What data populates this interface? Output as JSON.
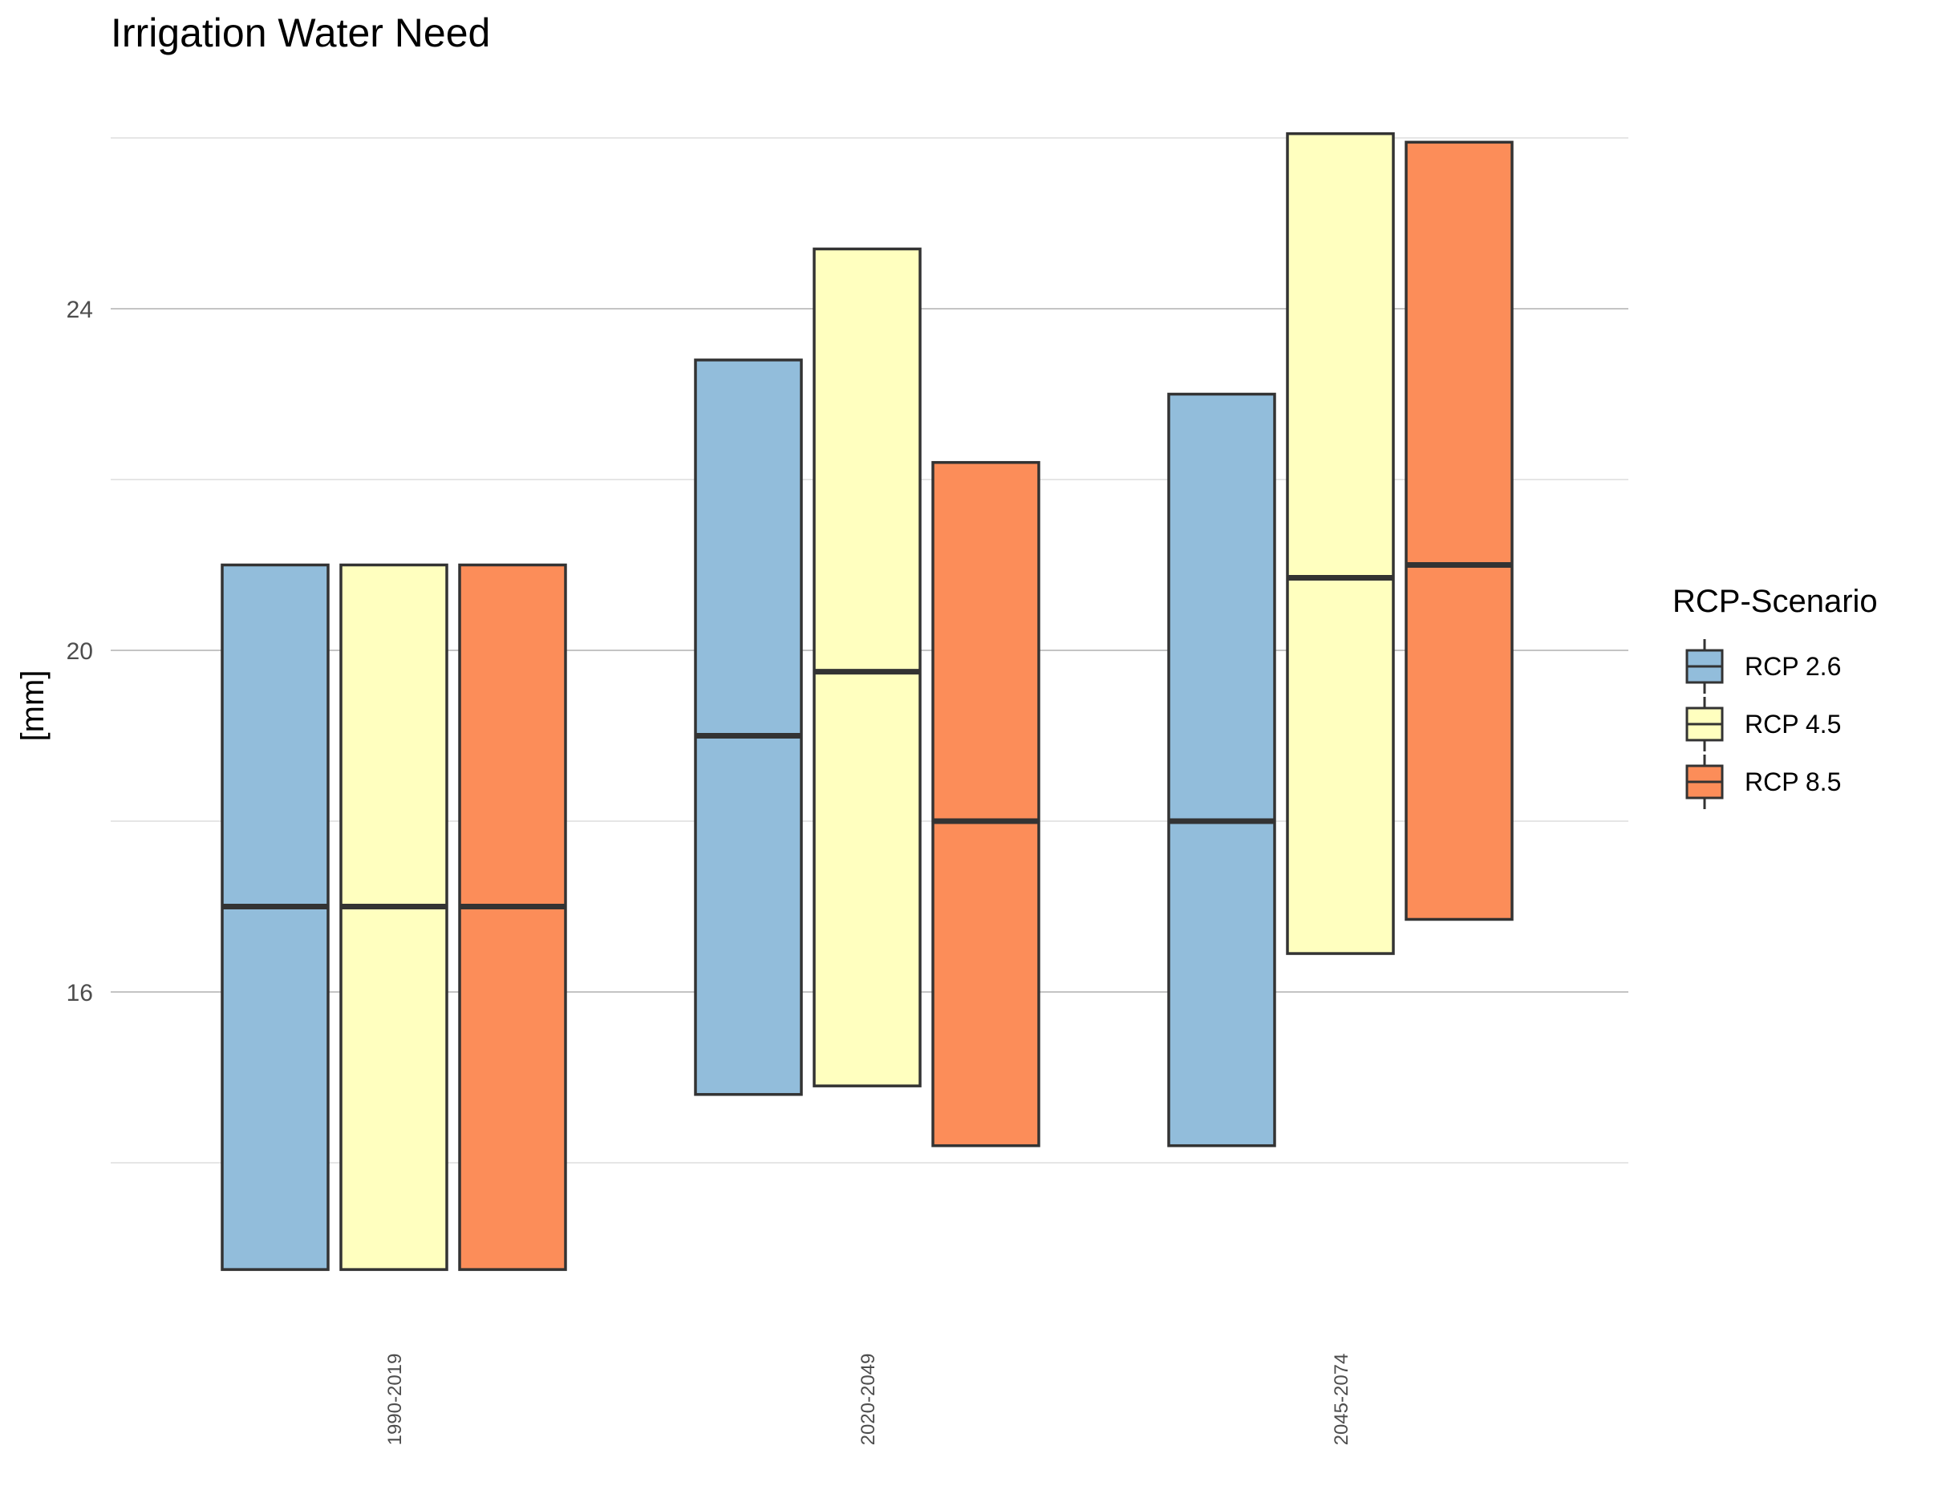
{
  "chart_data": {
    "type": "boxplot",
    "title": "Irrigation Water Need",
    "xlabel": "",
    "ylabel": "[mm]",
    "ylim": [
      12.0,
      26.3
    ],
    "yticks": [
      16,
      20,
      24
    ],
    "grid": true,
    "legend": {
      "title": "RCP-Scenario",
      "placement": "right"
    },
    "categories": [
      "1990-2019",
      "2020-2049",
      "2045-2074"
    ],
    "series": [
      {
        "name": "RCP 2.6",
        "color": "#92BDDB",
        "boxes": [
          {
            "low": 12.75,
            "median": 17.0,
            "high": 21.0
          },
          {
            "low": 14.8,
            "median": 19.0,
            "high": 23.4
          },
          {
            "low": 14.2,
            "median": 18.0,
            "high": 23.0
          }
        ]
      },
      {
        "name": "RCP 4.5",
        "color": "#FFFFBF",
        "boxes": [
          {
            "low": 12.75,
            "median": 17.0,
            "high": 21.0
          },
          {
            "low": 14.9,
            "median": 19.75,
            "high": 24.7
          },
          {
            "low": 16.45,
            "median": 20.85,
            "high": 26.05
          }
        ]
      },
      {
        "name": "RCP 8.5",
        "color": "#FC8D59",
        "boxes": [
          {
            "low": 12.75,
            "median": 17.0,
            "high": 21.0
          },
          {
            "low": 14.2,
            "median": 18.0,
            "high": 22.2
          },
          {
            "low": 16.85,
            "median": 21.0,
            "high": 25.95
          }
        ]
      }
    ]
  }
}
